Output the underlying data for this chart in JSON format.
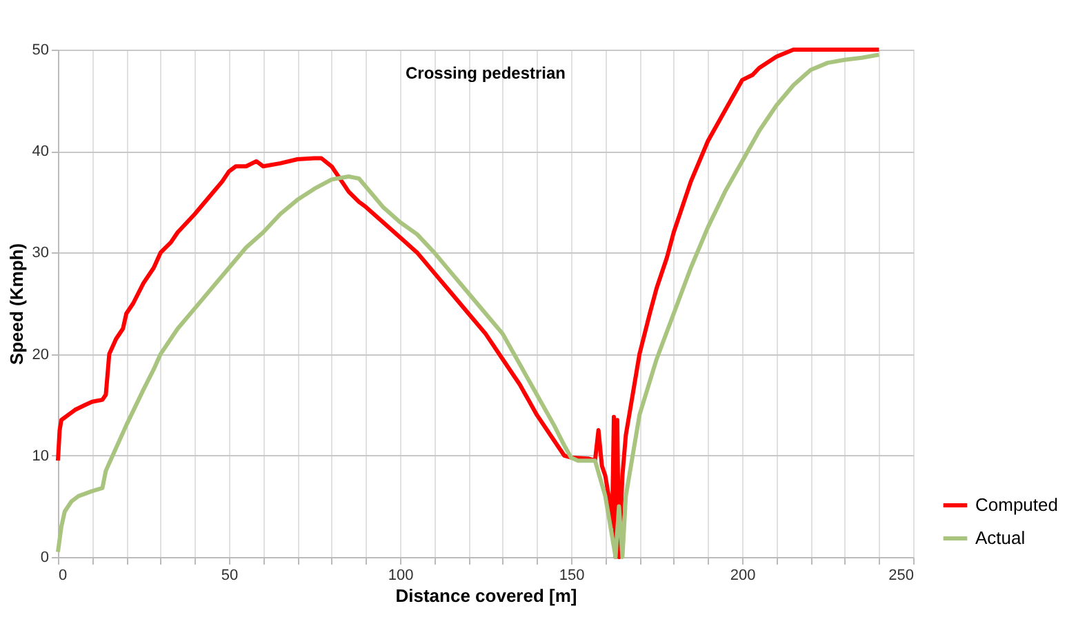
{
  "chart_data": {
    "type": "line",
    "title": "Crossing pedestrian",
    "xlabel": "Distance covered [m]",
    "ylabel": "Speed (Kmph)",
    "xlim": [
      0,
      250
    ],
    "ylim": [
      0,
      50
    ],
    "xticks": [
      0,
      {
        "value": 10,
        "label": null
      },
      {
        "value": 20,
        "label": null
      },
      {
        "value": 30,
        "label": null
      },
      {
        "value": 40,
        "label": null
      },
      50,
      {
        "value": 60,
        "label": null
      },
      {
        "value": 70,
        "label": null
      },
      {
        "value": 80,
        "label": null
      },
      {
        "value": 90,
        "label": null
      },
      100,
      {
        "value": 110,
        "label": null
      },
      {
        "value": 120,
        "label": null
      },
      {
        "value": 130,
        "label": null
      },
      {
        "value": 140,
        "label": null
      },
      150,
      {
        "value": 160,
        "label": null
      },
      {
        "value": 170,
        "label": null
      },
      {
        "value": 180,
        "label": null
      },
      {
        "value": 190,
        "label": null
      },
      200,
      {
        "value": 210,
        "label": null
      },
      {
        "value": 220,
        "label": null
      },
      {
        "value": 230,
        "label": null
      },
      {
        "value": 240,
        "label": null
      },
      250
    ],
    "yticks": [
      0,
      10,
      20,
      30,
      40,
      50
    ],
    "grid": true,
    "legend": "bottom right",
    "line_style": "solid",
    "marker": "none",
    "series": [
      {
        "name": "Computed",
        "color": "#ff0000",
        "x": [
          0,
          0.5,
          1,
          3,
          5,
          8,
          10,
          13,
          14,
          15,
          17,
          19,
          20,
          22,
          25,
          28,
          30,
          33,
          35,
          40,
          45,
          48,
          50,
          52,
          55,
          58,
          60,
          65,
          70,
          75,
          77,
          80,
          83,
          85,
          88,
          90,
          95,
          100,
          105,
          110,
          115,
          120,
          125,
          130,
          135,
          140,
          145,
          148,
          150,
          155,
          157,
          158,
          159,
          160,
          161,
          162,
          162.5,
          163,
          163.5,
          164,
          165,
          166,
          168,
          170,
          173,
          175,
          178,
          180,
          183,
          185,
          190,
          195,
          200,
          203,
          205,
          210,
          215,
          240
        ],
        "values": [
          9.5,
          12.5,
          13.5,
          14,
          14.5,
          15,
          15.3,
          15.5,
          16,
          20,
          21.5,
          22.5,
          24,
          25,
          27,
          28.5,
          30,
          31,
          32,
          33.8,
          35.8,
          37,
          38,
          38.5,
          38.5,
          39,
          38.5,
          38.8,
          39.2,
          39.3,
          39.3,
          38.5,
          37,
          36,
          35,
          34.5,
          33,
          31.5,
          30,
          28,
          26,
          24,
          22,
          19.5,
          17,
          14,
          11.5,
          10,
          9.8,
          9.7,
          9.5,
          12.5,
          9,
          8,
          6,
          3,
          13.8,
          0,
          13.5,
          0,
          8,
          12,
          16,
          20,
          24,
          26.5,
          29.5,
          32,
          35,
          37,
          41,
          44,
          47,
          47.5,
          48.2,
          49.3,
          50,
          50
        ]
      },
      {
        "name": "Actual",
        "color": "#a9c47f",
        "x": [
          0,
          1,
          2,
          4,
          6,
          10,
          13,
          14,
          16,
          20,
          25,
          28,
          30,
          35,
          40,
          45,
          50,
          55,
          60,
          65,
          70,
          75,
          80,
          85,
          88,
          90,
          95,
          100,
          105,
          110,
          115,
          120,
          125,
          130,
          135,
          140,
          145,
          148,
          150,
          152,
          155,
          157,
          160,
          162,
          163,
          164,
          165,
          166,
          168,
          170,
          175,
          180,
          185,
          190,
          195,
          200,
          205,
          210,
          215,
          220,
          225,
          230,
          235,
          240
        ],
        "values": [
          0.5,
          3,
          4.5,
          5.5,
          6,
          6.5,
          6.8,
          8.5,
          10,
          13,
          16.5,
          18.5,
          20,
          22.5,
          24.5,
          26.5,
          28.5,
          30.5,
          32,
          33.8,
          35.2,
          36.3,
          37.2,
          37.5,
          37.3,
          36.5,
          34.5,
          33,
          31.8,
          30,
          28,
          26,
          24,
          22,
          19,
          16,
          13,
          11,
          9.8,
          9.5,
          9.5,
          9.5,
          6,
          2,
          0,
          5,
          0,
          6,
          10,
          14,
          19.5,
          24,
          28.5,
          32.5,
          36,
          39,
          42,
          44.5,
          46.5,
          48,
          48.7,
          49,
          49.2,
          49.5
        ]
      }
    ]
  }
}
